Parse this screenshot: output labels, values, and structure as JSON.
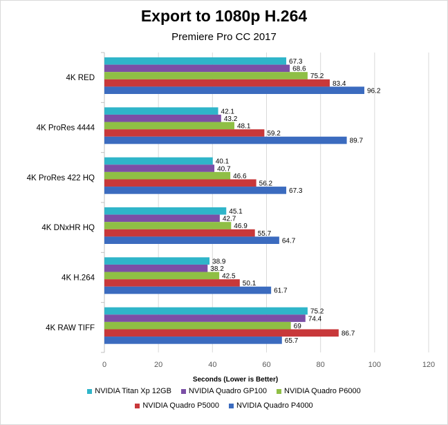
{
  "chart_data": {
    "type": "bar",
    "orientation": "horizontal",
    "title": "Export to 1080p H.264",
    "subtitle": "Premiere Pro CC 2017",
    "xlabel": "Seconds (Lower is Better)",
    "ylabel": "",
    "xlim": [
      0,
      120
    ],
    "xticks": [
      0,
      20,
      40,
      60,
      80,
      100,
      120
    ],
    "grid": true,
    "legend_position": "bottom",
    "categories": [
      "4K RED",
      "4K ProRes 4444",
      "4K ProRes 422 HQ",
      "4K DNxHR HQ",
      "4K H.264",
      "4K RAW TIFF"
    ],
    "series": [
      {
        "name": "NVIDIA Titan Xp 12GB",
        "color": "#2fb5c9",
        "values": [
          67.3,
          42.1,
          40.1,
          45.1,
          38.9,
          75.2
        ]
      },
      {
        "name": "NVIDIA Quadro GP100",
        "color": "#7b4fa6",
        "values": [
          68.6,
          43.2,
          40.7,
          42.7,
          38.2,
          74.4
        ]
      },
      {
        "name": "NVIDIA Quadro P6000",
        "color": "#8fbf45",
        "values": [
          75.2,
          48.1,
          46.6,
          46.9,
          42.5,
          69
        ]
      },
      {
        "name": "NVIDIA Quadro P5000",
        "color": "#c8383a",
        "values": [
          83.4,
          59.2,
          56.2,
          55.7,
          50.1,
          86.7
        ]
      },
      {
        "name": "NVIDIA Quadro P4000",
        "color": "#3b6bbf",
        "values": [
          96.2,
          89.7,
          67.3,
          64.7,
          61.7,
          65.7
        ]
      }
    ]
  }
}
